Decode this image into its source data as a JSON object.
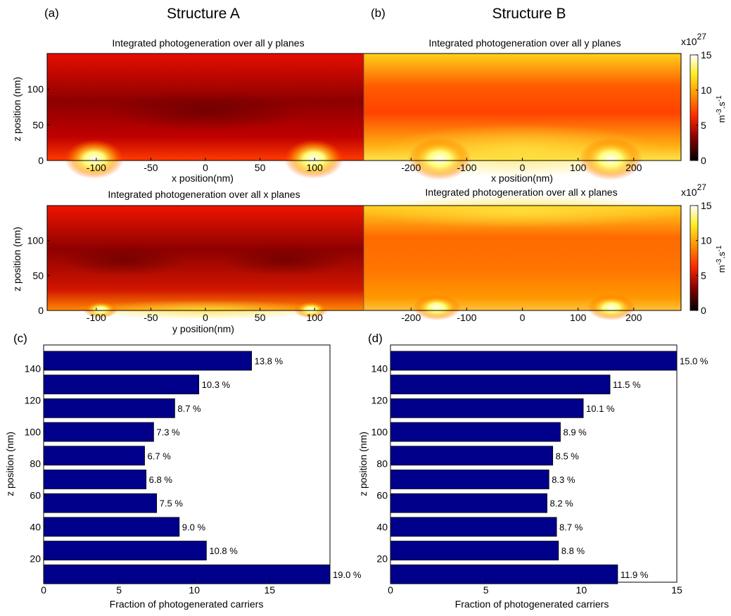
{
  "labels": {
    "panel_a": "(a)",
    "panel_b": "(b)",
    "panel_c": "(c)",
    "panel_d": "(d)",
    "structure_a": "Structure A",
    "structure_b": "Structure B"
  },
  "colorbar": {
    "exponent_base": "x10",
    "exponent_power": "27",
    "unit_label": "m",
    "unit_sup1": "-3",
    "unit_mid": ".s",
    "unit_sup2": "-1",
    "ticks": [
      0,
      5,
      10,
      15
    ],
    "range": [
      0,
      15
    ],
    "colormap": "hot",
    "colors": [
      "#000000",
      "#b30000",
      "#ff3300",
      "#ff9900",
      "#ffff33",
      "#ffffff"
    ]
  },
  "chart_data": [
    {
      "id": "a-top",
      "type": "heatmap",
      "title": "Integrated photogeneration over all y planes",
      "xlabel": "x position(nm)",
      "ylabel": "z position (nm)",
      "xlim": [
        -145,
        145
      ],
      "ylim": [
        0,
        150
      ],
      "xticks": [
        -100,
        -50,
        0,
        50,
        100
      ],
      "yticks": [
        0,
        50,
        100
      ],
      "hotspots": [
        {
          "x": -100,
          "z": 0
        },
        {
          "x": 100,
          "z": 0
        }
      ]
    },
    {
      "id": "b-top",
      "type": "heatmap",
      "title": "Integrated photogeneration over all y planes",
      "xlabel": "x position(nm)",
      "ylabel": "",
      "xlim": [
        -285,
        285
      ],
      "ylim": [
        0,
        150
      ],
      "xticks": [
        -200,
        -100,
        0,
        100,
        200
      ],
      "yticks": [],
      "hotspots": [
        {
          "x": -160,
          "z": 0
        },
        {
          "x": 160,
          "z": 0
        }
      ]
    },
    {
      "id": "a-bottom",
      "type": "heatmap",
      "title": "Integrated photogeneration over all x planes",
      "xlabel": "y position(nm)",
      "ylabel": "z position (nm)",
      "xlim": [
        -145,
        145
      ],
      "ylim": [
        0,
        150
      ],
      "xticks": [
        -100,
        -50,
        0,
        50,
        100
      ],
      "yticks": [
        0,
        50,
        100
      ],
      "hotspots": [
        {
          "x": -100,
          "z": 0
        },
        {
          "x": 100,
          "z": 0
        }
      ]
    },
    {
      "id": "b-bottom",
      "type": "heatmap",
      "title": "Integrated photogeneration over all x planes",
      "xlabel": "",
      "ylabel": "",
      "xlim": [
        -285,
        285
      ],
      "ylim": [
        0,
        150
      ],
      "xticks": [
        -200,
        -100,
        0,
        100,
        200
      ],
      "yticks": [],
      "hotspots": [
        {
          "x": -160,
          "z": 0
        },
        {
          "x": 160,
          "z": 0
        }
      ]
    },
    {
      "id": "c",
      "type": "bar",
      "orientation": "horizontal",
      "xlabel": "Fraction of photogenerated carriers",
      "ylabel": "z position (nm)",
      "xlim": [
        0,
        19
      ],
      "ylim": [
        5,
        155
      ],
      "xticks": [
        0,
        5,
        10,
        15
      ],
      "yticks": [
        20,
        40,
        60,
        80,
        100,
        120,
        140
      ],
      "categories": [
        10,
        25,
        40,
        55,
        70,
        85,
        100,
        115,
        130,
        145
      ],
      "values": [
        19.0,
        10.8,
        9.0,
        7.5,
        6.8,
        6.7,
        7.3,
        8.7,
        10.3,
        13.8
      ],
      "labels": [
        "19.0 %",
        "10.8 %",
        "9.0 %",
        "7.5 %",
        "6.8 %",
        "6.7 %",
        "7.3 %",
        "8.7 %",
        "10.3 %",
        "13.8 %"
      ],
      "bar_color": "#00008b"
    },
    {
      "id": "d",
      "type": "bar",
      "orientation": "horizontal",
      "xlabel": "Fraction of photogenerated carriers",
      "ylabel": "z position (nm)",
      "xlim": [
        0,
        15
      ],
      "ylim": [
        5,
        155
      ],
      "xticks": [
        0,
        5,
        10,
        15
      ],
      "yticks": [
        20,
        40,
        60,
        80,
        100,
        120,
        140
      ],
      "categories": [
        10,
        25,
        40,
        55,
        70,
        85,
        100,
        115,
        130,
        145
      ],
      "values": [
        11.9,
        8.8,
        8.7,
        8.2,
        8.3,
        8.5,
        8.9,
        10.1,
        11.5,
        15.0
      ],
      "labels": [
        "11.9 %",
        "8.8 %",
        "8.7 %",
        "8.2 %",
        "8.3 %",
        "8.5 %",
        "8.9 %",
        "10.1 %",
        "11.5 %",
        "15.0 %"
      ],
      "bar_color": "#00008b"
    }
  ]
}
